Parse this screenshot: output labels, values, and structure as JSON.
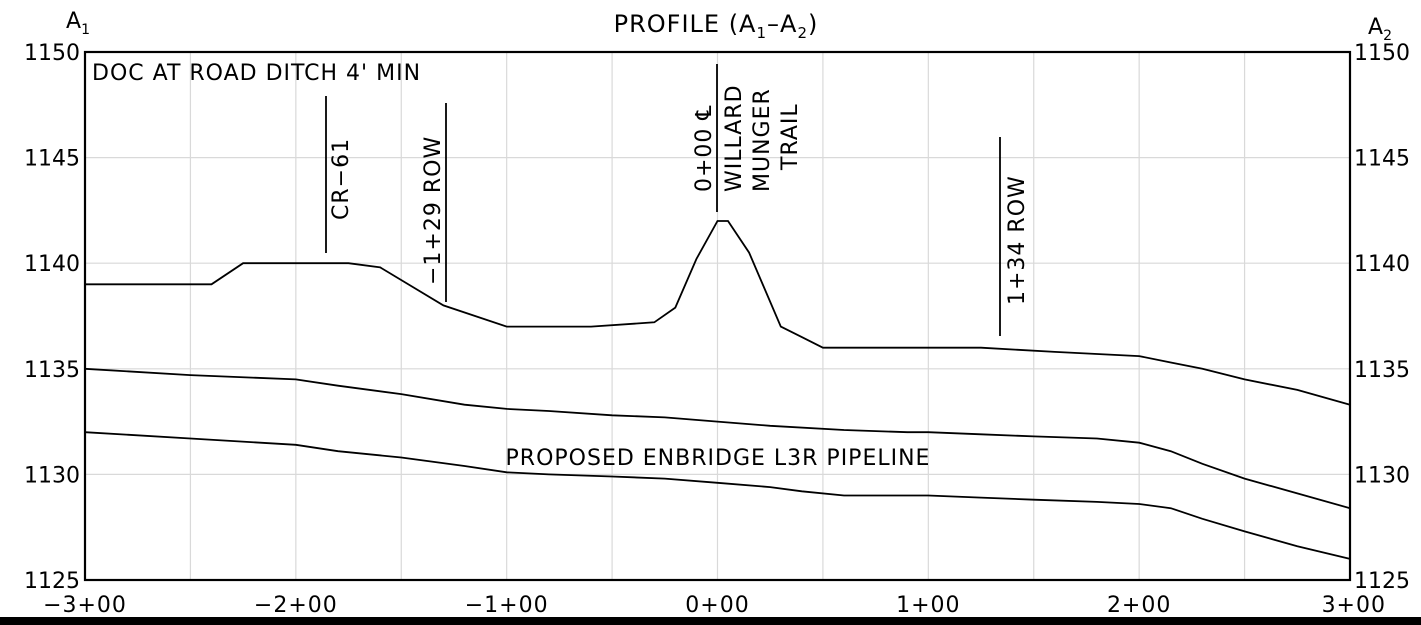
{
  "title": "PROFILE (A1–A2)",
  "title_parts": {
    "prefix": "PROFILE (A",
    "sub1": "1",
    "dash": "–A",
    "sub2": "2",
    "suffix": ")"
  },
  "corner_left": {
    "letter": "A",
    "sub": "1"
  },
  "corner_right": {
    "letter": "A",
    "sub": "2"
  },
  "note": "DOC AT ROAD DITCH 4' MIN",
  "pipeline_label": "PROPOSED ENBRIDGE L3R PIPELINE",
  "colors": {
    "ink": "#000000",
    "grid": "#d9d9d9",
    "background": "#ffffff"
  },
  "y_ticks": [
    "1150",
    "1145",
    "1140",
    "1135",
    "1130",
    "1125"
  ],
  "x_ticks": [
    "−3+00",
    "−2+00",
    "−1+00",
    "0+00",
    "1+00",
    "2+00",
    "3+00"
  ],
  "vertical_labels": [
    {
      "id": "cr61",
      "lines": [
        "CR−61"
      ]
    },
    {
      "id": "row-left",
      "lines": [
        "−1+29 ROW"
      ]
    },
    {
      "id": "trail",
      "lines": [
        "0+00 ℄",
        "WILLARD",
        "MUNGER",
        "TRAIL"
      ]
    },
    {
      "id": "row-right",
      "lines": [
        "1+34 ROW"
      ]
    }
  ],
  "chart_data": {
    "type": "line",
    "xlabel": "",
    "ylabel": "",
    "xlim": [
      -300,
      300
    ],
    "ylim": [
      1125,
      1150
    ],
    "grid": true,
    "x_ticks": [
      -300,
      -250,
      -200,
      -150,
      -100,
      -50,
      0,
      50,
      100,
      150,
      200,
      250,
      300
    ],
    "y_ticks": [
      1125,
      1130,
      1135,
      1140,
      1145,
      1150
    ],
    "series": [
      {
        "id": "existing-ground",
        "x": [
          -300,
          -240,
          -225,
          -175,
          -160,
          -130,
          -100,
          -60,
          -30,
          -20,
          -10,
          0,
          5,
          15,
          30,
          40,
          50,
          60,
          80,
          100,
          125,
          160,
          200,
          215,
          230,
          250,
          275,
          300
        ],
        "y": [
          1139,
          1139,
          1140,
          1140,
          1139.8,
          1138,
          1137,
          1137,
          1137.2,
          1137.9,
          1140.2,
          1142,
          1142,
          1140.5,
          1137,
          1136.5,
          1136,
          1136,
          1136,
          1136,
          1136,
          1135.8,
          1135.6,
          1135.3,
          1135,
          1134.5,
          1134,
          1133.3
        ]
      },
      {
        "id": "pipeline-top",
        "x": [
          -300,
          -250,
          -200,
          -180,
          -150,
          -120,
          -100,
          -80,
          -50,
          -25,
          0,
          25,
          60,
          90,
          100,
          125,
          150,
          180,
          200,
          215,
          230,
          250,
          275,
          300
        ],
        "y": [
          1135,
          1134.7,
          1134.5,
          1134.2,
          1133.8,
          1133.3,
          1133.1,
          1133,
          1132.8,
          1132.7,
          1132.5,
          1132.3,
          1132.1,
          1132,
          1132,
          1131.9,
          1131.8,
          1131.7,
          1131.5,
          1131.1,
          1130.5,
          1129.8,
          1129.1,
          1128.4
        ]
      },
      {
        "id": "pipeline-bottom",
        "x": [
          -300,
          -250,
          -200,
          -180,
          -150,
          -120,
          -100,
          -80,
          -50,
          -25,
          0,
          25,
          40,
          60,
          90,
          100,
          125,
          150,
          180,
          200,
          215,
          230,
          250,
          275,
          300
        ],
        "y": [
          1132,
          1131.7,
          1131.4,
          1131.1,
          1130.8,
          1130.4,
          1130.1,
          1130,
          1129.9,
          1129.8,
          1129.6,
          1129.4,
          1129.2,
          1129,
          1129,
          1129,
          1128.9,
          1128.8,
          1128.7,
          1128.6,
          1128.4,
          1127.9,
          1127.3,
          1126.6,
          1126
        ]
      }
    ]
  }
}
